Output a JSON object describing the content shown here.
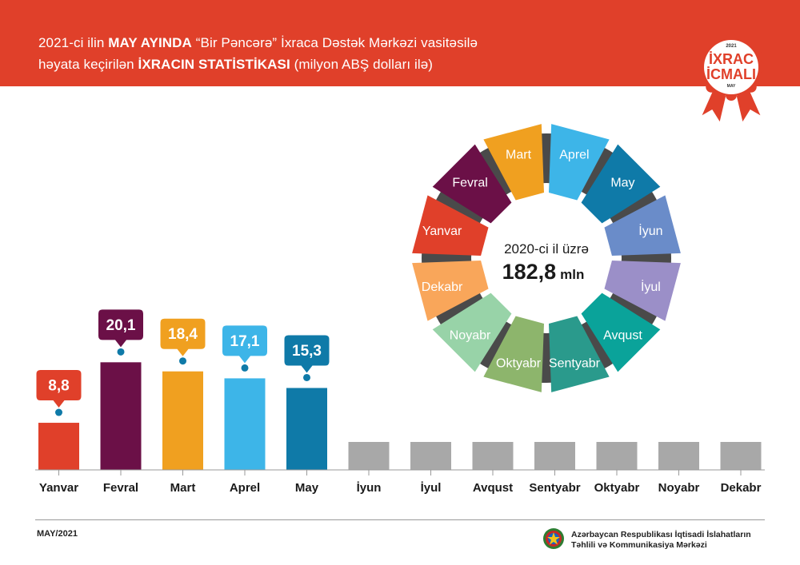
{
  "header": {
    "line1": [
      {
        "text": "2021-ci ilin ",
        "bold": false
      },
      {
        "text": "MAY AYINDA",
        "bold": true
      },
      {
        "text": " “Bir Pəncərə” İxraca Dəstək Mərkəzi vasitəsilə",
        "bold": false
      }
    ],
    "line2": [
      {
        "text": "həyata keçirilən ",
        "bold": false
      },
      {
        "text": "İXRACIN STATİSTİKASI",
        "bold": true
      },
      {
        "text": " (milyon ABŞ dolları ilə)",
        "bold": false
      }
    ],
    "background": "#e0402a"
  },
  "badge": {
    "year": "2021",
    "line1": "İXRAC",
    "line2": "İCMALI",
    "month": "MAY",
    "color": "#e0402a"
  },
  "chart_data": [
    {
      "type": "bar",
      "categories": [
        "Yanvar",
        "Fevral",
        "Mart",
        "Aprel",
        "May",
        "İyun",
        "İyul",
        "Avqust",
        "Sentyabr",
        "Oktyabr",
        "Noyabr",
        "Dekabr"
      ],
      "values": [
        8.8,
        20.1,
        18.4,
        17.1,
        15.3,
        null,
        null,
        null,
        null,
        null,
        null,
        null
      ],
      "labels": [
        "8,8",
        "20,1",
        "18,4",
        "17,1",
        "15,3",
        "",
        "",
        "",
        "",
        "",
        "",
        ""
      ],
      "colors": [
        "#e0402a",
        "#6b1047",
        "#f0a020",
        "#3db5e8",
        "#0f7aa8",
        "#a8a8a8",
        "#a8a8a8",
        "#a8a8a8",
        "#a8a8a8",
        "#a8a8a8",
        "#a8a8a8",
        "#a8a8a8"
      ],
      "placeholder_color": "#a8a8a8",
      "dot_color": "#0f7aa8",
      "ylim": [
        0,
        22
      ]
    },
    {
      "type": "pie",
      "categories": [
        "Aprel",
        "May",
        "İyun",
        "İyul",
        "Avqust",
        "Sentyabr",
        "Oktyabr",
        "Noyabr",
        "Dekabr",
        "Yanvar",
        "Fevral",
        "Mart"
      ],
      "values": [
        1,
        1,
        1,
        1,
        1,
        1,
        1,
        1,
        1,
        1,
        1,
        1
      ],
      "colors": [
        "#3db5e8",
        "#0f7aa8",
        "#6a8cc9",
        "#9b8fc8",
        "#0aa39a",
        "#2a9a8c",
        "#8db56c",
        "#98d3a8",
        "#f9a65a",
        "#e0402a",
        "#6b1047",
        "#f0a020"
      ],
      "center_text": "2020-ci il üzrə",
      "center_value": "182,8",
      "center_unit": "mln"
    }
  ],
  "footer": {
    "date": "MAY/2021",
    "org_line1": "Azərbaycan Respublikası İqtisadi İslahatların",
    "org_line2": "Təhlili və Kommunikasiya Mərkəzi"
  }
}
